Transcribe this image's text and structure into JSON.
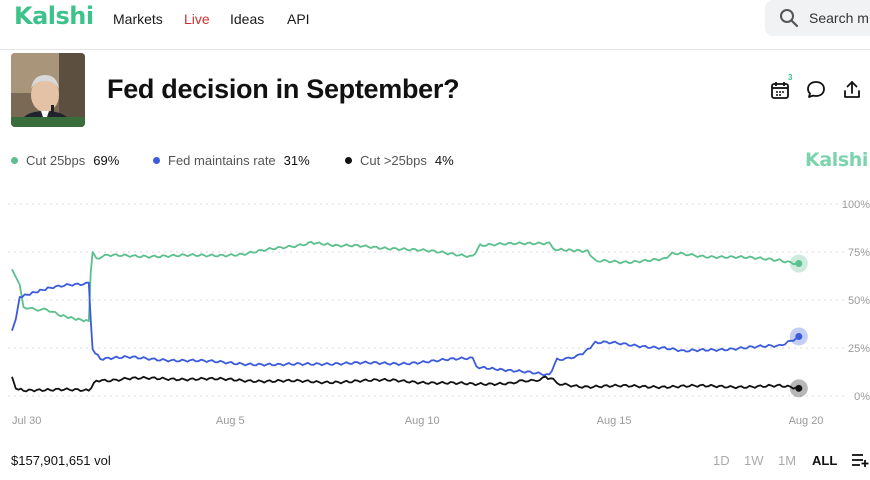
{
  "nav": {
    "logo": "Kalshi",
    "markets": "Markets",
    "live": "Live",
    "ideas": "Ideas",
    "api": "API",
    "search_placeholder": "Search m"
  },
  "market": {
    "title": "Fed decision in September?",
    "calendar_count": "3"
  },
  "legend": [
    {
      "name": "Cut 25bps",
      "pct": "69%",
      "color": "#5bbf8e"
    },
    {
      "name": "Fed maintains rate",
      "pct": "31%",
      "color": "#3b5bdb"
    },
    {
      "name": "Cut >25bps",
      "pct": "4%",
      "color": "#111111"
    }
  ],
  "brand": "Kalshi",
  "footer": {
    "volume": "$157,901,651 vol",
    "ranges": [
      "1D",
      "1W",
      "1M",
      "ALL"
    ],
    "active_range": "ALL"
  },
  "chart_data": {
    "type": "line",
    "x_ticks": [
      "Jul 30",
      "Aug 5",
      "Aug 10",
      "Aug 15",
      "Aug 20"
    ],
    "y_ticks": [
      "100%",
      "75%",
      "50%",
      "25%",
      "0%"
    ],
    "ylim": [
      0,
      100
    ],
    "xlim": [
      0,
      21
    ],
    "x_unit": "days since Jul 30",
    "series": [
      {
        "name": "Cut 25bps",
        "color": "#5bbf8e",
        "points": [
          [
            0,
            66
          ],
          [
            0.1,
            62
          ],
          [
            0.2,
            58
          ],
          [
            0.3,
            46
          ],
          [
            0.9,
            45
          ],
          [
            1.2,
            42
          ],
          [
            1.6,
            40
          ],
          [
            2.0,
            39
          ],
          [
            2.05,
            64
          ],
          [
            2.1,
            75
          ],
          [
            2.2,
            72
          ],
          [
            2.5,
            73
          ],
          [
            3,
            73
          ],
          [
            4,
            73
          ],
          [
            5,
            73
          ],
          [
            6,
            74
          ],
          [
            7,
            77
          ],
          [
            7.8,
            80
          ],
          [
            8.5,
            78
          ],
          [
            9,
            78
          ],
          [
            10,
            77
          ],
          [
            11,
            75
          ],
          [
            12,
            73
          ],
          [
            12.2,
            79
          ],
          [
            13,
            79
          ],
          [
            14,
            80
          ],
          [
            14.1,
            76
          ],
          [
            15,
            75
          ],
          [
            15.2,
            70
          ],
          [
            16,
            70
          ],
          [
            17,
            71
          ],
          [
            17.2,
            74
          ],
          [
            18,
            73
          ],
          [
            19,
            72
          ],
          [
            20,
            71
          ],
          [
            20.5,
            69
          ]
        ]
      },
      {
        "name": "Fed maintains rate",
        "color": "#3b5bdb",
        "points": [
          [
            0,
            34
          ],
          [
            0.1,
            40
          ],
          [
            0.2,
            52
          ],
          [
            0.6,
            54
          ],
          [
            1.0,
            56
          ],
          [
            1.5,
            58
          ],
          [
            2.0,
            59
          ],
          [
            2.05,
            40
          ],
          [
            2.1,
            24
          ],
          [
            2.3,
            19
          ],
          [
            3,
            20
          ],
          [
            4,
            19
          ],
          [
            5,
            18
          ],
          [
            6,
            17
          ],
          [
            7,
            16
          ],
          [
            8,
            17
          ],
          [
            9,
            17
          ],
          [
            10,
            17
          ],
          [
            11,
            18
          ],
          [
            12,
            20
          ],
          [
            12.1,
            15
          ],
          [
            13,
            13
          ],
          [
            14,
            11
          ],
          [
            14.2,
            19
          ],
          [
            14.8,
            21
          ],
          [
            15,
            24
          ],
          [
            15.2,
            28
          ],
          [
            16,
            27
          ],
          [
            17,
            25
          ],
          [
            17.5,
            23
          ],
          [
            18,
            24
          ],
          [
            19,
            25
          ],
          [
            20,
            26
          ],
          [
            20.5,
            31
          ]
        ]
      },
      {
        "name": "Cut >25bps",
        "color": "#111111",
        "points": [
          [
            0,
            10
          ],
          [
            0.1,
            4
          ],
          [
            0.3,
            3
          ],
          [
            1,
            3
          ],
          [
            2,
            3
          ],
          [
            2.2,
            8
          ],
          [
            3,
            9
          ],
          [
            4,
            9
          ],
          [
            5,
            9
          ],
          [
            6,
            8
          ],
          [
            7,
            8
          ],
          [
            8,
            7
          ],
          [
            9,
            8
          ],
          [
            10,
            8
          ],
          [
            11,
            7
          ],
          [
            12,
            6
          ],
          [
            13,
            7
          ],
          [
            13.6,
            8
          ],
          [
            13.9,
            10
          ],
          [
            14.1,
            9
          ],
          [
            14.2,
            6
          ],
          [
            15,
            5
          ],
          [
            16,
            5
          ],
          [
            17,
            5
          ],
          [
            18,
            5
          ],
          [
            19,
            5
          ],
          [
            20,
            5
          ],
          [
            20.5,
            4
          ]
        ]
      }
    ]
  }
}
